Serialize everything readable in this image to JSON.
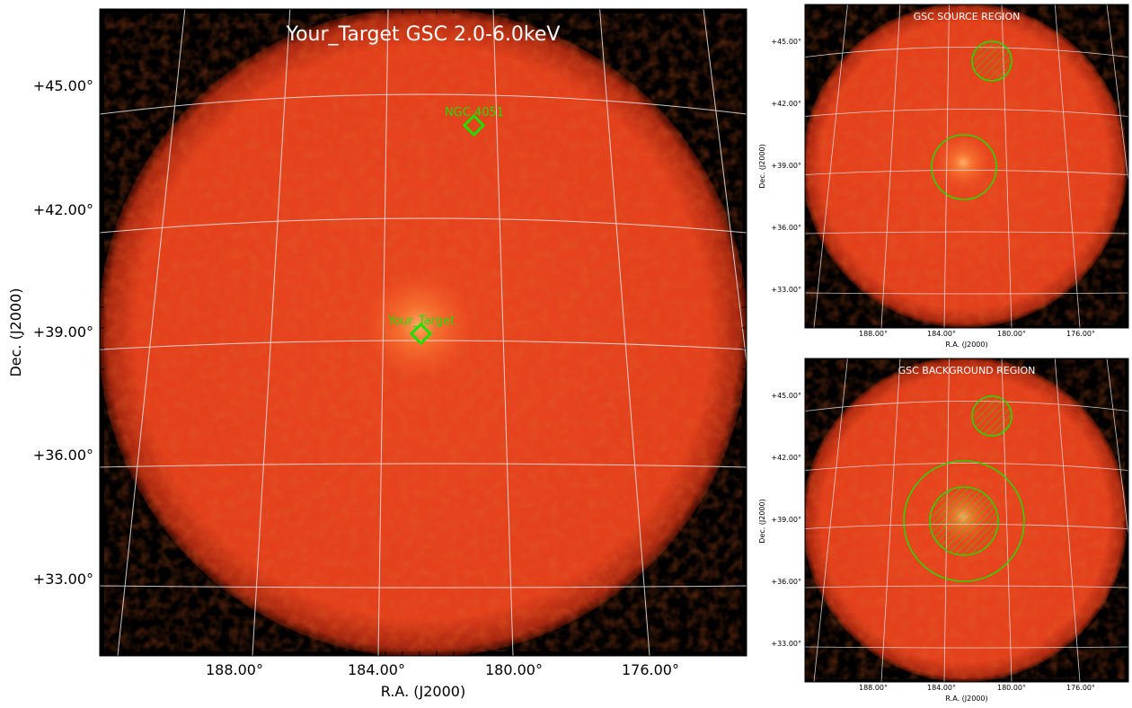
{
  "colors": {
    "background": "#000000",
    "disk": "#e8411e",
    "grid": "#e8e8e8",
    "marker": "#22dd00",
    "title": "#ffffff"
  },
  "main_panel": {
    "title": "Your_Target GSC 2.0-6.0keV",
    "xlabel": "R.A. (J2000)",
    "ylabel": "Dec. (J2000)",
    "x_ticks": [
      "188.00°",
      "184.00°",
      "180.00°",
      "176.00°"
    ],
    "y_ticks": [
      "+45.00°",
      "+42.00°",
      "+39.00°",
      "+36.00°",
      "+33.00°"
    ],
    "markers": [
      {
        "label": "NGC 4051",
        "ra": 180.8,
        "dec": 44.0,
        "shape": "diamond"
      },
      {
        "label": "Your_Target",
        "ra": 182.5,
        "dec": 39.0,
        "shape": "diamond"
      }
    ]
  },
  "source_panel": {
    "title": "GSC SOURCE REGION",
    "xlabel": "R.A. (J2000)",
    "ylabel": "Dec. (J2000)",
    "x_ticks": [
      "188.00°",
      "184.00°",
      "180.00°",
      "176.00°"
    ],
    "y_ticks": [
      "+45.00°",
      "+42.00°",
      "+39.00°",
      "+36.00°",
      "+33.00°"
    ],
    "regions": [
      {
        "type": "source-circle",
        "ra": 182.5,
        "dec": 39.0
      },
      {
        "type": "excluded-circle",
        "ra": 180.8,
        "dec": 44.0,
        "hatched": true
      }
    ]
  },
  "background_panel": {
    "title": "GSC BACKGROUND REGION",
    "xlabel": "R.A. (J2000)",
    "ylabel": "Dec. (J2000)",
    "x_ticks": [
      "188.00°",
      "184.00°",
      "180.00°",
      "176.00°"
    ],
    "y_ticks": [
      "+45.00°",
      "+42.00°",
      "+39.00°",
      "+36.00°",
      "+33.00°"
    ],
    "regions": [
      {
        "type": "background-annulus-outer",
        "ra": 182.5,
        "dec": 39.0
      },
      {
        "type": "background-annulus-inner",
        "ra": 182.5,
        "dec": 39.0,
        "hatched": true
      },
      {
        "type": "excluded-circle",
        "ra": 180.8,
        "dec": 44.0,
        "hatched": true
      }
    ]
  }
}
